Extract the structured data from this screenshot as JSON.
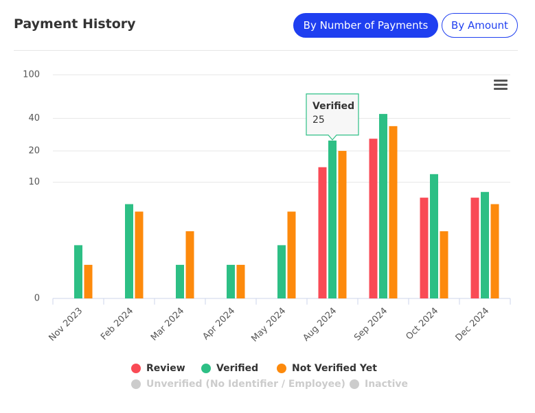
{
  "header": {
    "title": "Payment History",
    "buttons": [
      "By Number of Payments",
      "By Amount"
    ]
  },
  "chart_data": {
    "type": "bar",
    "categories": [
      "Nov 2023",
      "Feb 2024",
      "Mar 2024",
      "Apr 2024",
      "May 2024",
      "Aug 2024",
      "Sep 2024",
      "Oct 2024",
      "Dec 2024"
    ],
    "series": [
      {
        "name": "Review",
        "color": "#f94a55",
        "values": [
          0,
          0,
          0,
          0,
          0,
          14,
          26,
          7,
          7
        ]
      },
      {
        "name": "Verified",
        "color": "#2dbf85",
        "values": [
          2,
          6,
          1,
          1,
          2,
          25,
          44,
          12,
          8
        ]
      },
      {
        "name": "Not Verified Yet",
        "color": "#fd8a0c",
        "values": [
          1,
          5,
          3,
          1,
          5,
          20,
          34,
          3,
          6
        ]
      },
      {
        "name": "Unverified (No Identifier / Employee)",
        "color": "#cccccc",
        "visible": false,
        "values": [
          null,
          null,
          null,
          null,
          null,
          null,
          null,
          null,
          null
        ]
      },
      {
        "name": "Inactive",
        "color": "#cccccc",
        "visible": false,
        "values": [
          null,
          null,
          null,
          null,
          null,
          null,
          null,
          null,
          null
        ]
      }
    ],
    "log_scale": true,
    "ylim": [
      0,
      100
    ],
    "yticks": [
      0,
      10,
      20,
      40,
      100
    ],
    "grid": true,
    "tooltip": {
      "title": "Verified",
      "value": 25
    }
  }
}
